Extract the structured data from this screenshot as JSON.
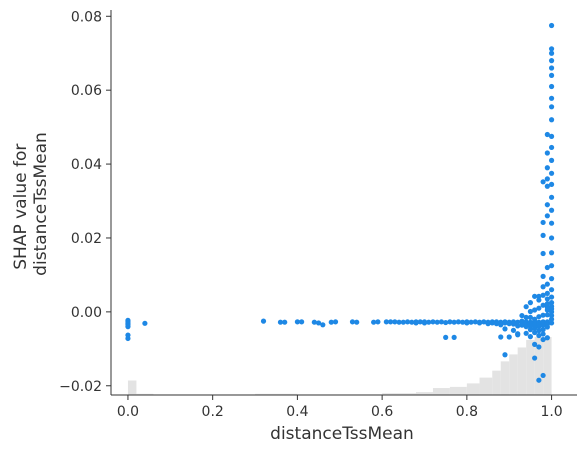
{
  "chart_data": {
    "type": "scatter",
    "title": "",
    "xlabel": "distanceTssMean",
    "ylabel_lines": [
      "SHAP value for",
      "distanceTssMean"
    ],
    "xlim": [
      -0.04,
      1.06
    ],
    "ylim": [
      -0.0225,
      0.0817
    ],
    "xticks": [
      0.0,
      0.2,
      0.4,
      0.6,
      0.8,
      1.0
    ],
    "xtick_labels": [
      "0.0",
      "0.2",
      "0.4",
      "0.6",
      "0.8",
      "1.0"
    ],
    "yticks": [
      -0.02,
      0.0,
      0.02,
      0.04,
      0.06,
      0.08
    ],
    "ytick_labels": [
      "−0.02",
      "0.00",
      "0.02",
      "0.04",
      "0.06",
      "0.08"
    ],
    "point_color": "#1e88e5",
    "histogram_color": "#e3e3e3",
    "histogram": {
      "description": "feature value distribution (relative height 0-1)",
      "bins": [
        {
          "x0": 0.0,
          "x1": 0.02,
          "h": 0.25
        },
        {
          "x0": 0.02,
          "x1": 0.06,
          "h": 0.02
        },
        {
          "x0": 0.06,
          "x1": 0.3,
          "h": 0.01
        },
        {
          "x0": 0.3,
          "x1": 0.4,
          "h": 0.02
        },
        {
          "x0": 0.4,
          "x1": 0.5,
          "h": 0.01
        },
        {
          "x0": 0.5,
          "x1": 0.6,
          "h": 0.01
        },
        {
          "x0": 0.6,
          "x1": 0.68,
          "h": 0.03
        },
        {
          "x0": 0.68,
          "x1": 0.72,
          "h": 0.05
        },
        {
          "x0": 0.72,
          "x1": 0.76,
          "h": 0.12
        },
        {
          "x0": 0.76,
          "x1": 0.8,
          "h": 0.14
        },
        {
          "x0": 0.8,
          "x1": 0.83,
          "h": 0.2
        },
        {
          "x0": 0.83,
          "x1": 0.86,
          "h": 0.3
        },
        {
          "x0": 0.86,
          "x1": 0.88,
          "h": 0.42
        },
        {
          "x0": 0.88,
          "x1": 0.9,
          "h": 0.58
        },
        {
          "x0": 0.9,
          "x1": 0.92,
          "h": 0.7
        },
        {
          "x0": 0.92,
          "x1": 0.94,
          "h": 0.82
        },
        {
          "x0": 0.94,
          "x1": 0.96,
          "h": 0.95
        },
        {
          "x0": 0.96,
          "x1": 0.98,
          "h": 1.0
        },
        {
          "x0": 0.98,
          "x1": 1.0,
          "h": 1.0
        }
      ]
    },
    "points": [
      [
        0.0,
        -0.0023
      ],
      [
        0.0,
        -0.0027
      ],
      [
        0.0,
        -0.0031
      ],
      [
        0.0,
        -0.0035
      ],
      [
        0.0,
        -0.004
      ],
      [
        0.0,
        -0.0063
      ],
      [
        0.0,
        -0.0072
      ],
      [
        0.04,
        -0.0031
      ],
      [
        0.32,
        -0.0025
      ],
      [
        0.36,
        -0.0028
      ],
      [
        0.37,
        -0.0028
      ],
      [
        0.4,
        -0.0027
      ],
      [
        0.41,
        -0.0027
      ],
      [
        0.44,
        -0.0028
      ],
      [
        0.45,
        -0.003
      ],
      [
        0.46,
        -0.0035
      ],
      [
        0.48,
        -0.0028
      ],
      [
        0.49,
        -0.0027
      ],
      [
        0.53,
        -0.0027
      ],
      [
        0.54,
        -0.0028
      ],
      [
        0.58,
        -0.0028
      ],
      [
        0.59,
        -0.0027
      ],
      [
        0.61,
        -0.0027
      ],
      [
        0.62,
        -0.0027
      ],
      [
        0.63,
        -0.0027
      ],
      [
        0.64,
        -0.0028
      ],
      [
        0.65,
        -0.0028
      ],
      [
        0.66,
        -0.0027
      ],
      [
        0.67,
        -0.0028
      ],
      [
        0.68,
        -0.0027
      ],
      [
        0.68,
        -0.003
      ],
      [
        0.69,
        -0.0027
      ],
      [
        0.7,
        -0.0027
      ],
      [
        0.7,
        -0.003
      ],
      [
        0.71,
        -0.0028
      ],
      [
        0.72,
        -0.0027
      ],
      [
        0.73,
        -0.0028
      ],
      [
        0.74,
        -0.0027
      ],
      [
        0.75,
        -0.0029
      ],
      [
        0.75,
        -0.0069
      ],
      [
        0.76,
        -0.0027
      ],
      [
        0.77,
        -0.0028
      ],
      [
        0.77,
        -0.0069
      ],
      [
        0.78,
        -0.0027
      ],
      [
        0.79,
        -0.0028
      ],
      [
        0.8,
        -0.0027
      ],
      [
        0.8,
        -0.003
      ],
      [
        0.81,
        -0.0028
      ],
      [
        0.82,
        -0.0027
      ],
      [
        0.83,
        -0.0028
      ],
      [
        0.83,
        -0.003
      ],
      [
        0.84,
        -0.0027
      ],
      [
        0.85,
        -0.0028
      ],
      [
        0.85,
        -0.0032
      ],
      [
        0.86,
        -0.0027
      ],
      [
        0.86,
        -0.003
      ],
      [
        0.87,
        -0.0027
      ],
      [
        0.87,
        -0.0032
      ],
      [
        0.88,
        -0.0028
      ],
      [
        0.88,
        -0.0035
      ],
      [
        0.88,
        -0.0068
      ],
      [
        0.89,
        -0.0027
      ],
      [
        0.89,
        -0.003
      ],
      [
        0.89,
        -0.0046
      ],
      [
        0.89,
        -0.0116
      ],
      [
        0.9,
        -0.0028
      ],
      [
        0.9,
        -0.0032
      ],
      [
        0.9,
        -0.0068
      ],
      [
        0.91,
        -0.0027
      ],
      [
        0.91,
        -0.0033
      ],
      [
        0.91,
        -0.005
      ],
      [
        0.92,
        -0.0028
      ],
      [
        0.92,
        -0.0038
      ],
      [
        0.92,
        -0.0059
      ],
      [
        0.92,
        -0.0062
      ],
      [
        0.93,
        -0.0027
      ],
      [
        0.93,
        -0.0036
      ],
      [
        0.93,
        -0.0025
      ],
      [
        0.93,
        -0.001
      ],
      [
        0.94,
        -0.0027
      ],
      [
        0.94,
        -0.0034
      ],
      [
        0.94,
        -0.004
      ],
      [
        0.94,
        -0.0058
      ],
      [
        0.94,
        -0.0015
      ],
      [
        0.94,
        0.0014
      ],
      [
        0.95,
        -0.0028
      ],
      [
        0.95,
        -0.0032
      ],
      [
        0.95,
        -0.0038
      ],
      [
        0.95,
        -0.0048
      ],
      [
        0.95,
        -0.0067
      ],
      [
        0.95,
        -0.0015
      ],
      [
        0.95,
        0.0001
      ],
      [
        0.95,
        0.0025
      ],
      [
        0.96,
        -0.0027
      ],
      [
        0.96,
        -0.003
      ],
      [
        0.96,
        -0.0035
      ],
      [
        0.96,
        -0.0044
      ],
      [
        0.96,
        -0.0056
      ],
      [
        0.96,
        -0.0088
      ],
      [
        0.96,
        -0.0125
      ],
      [
        0.96,
        -0.002
      ],
      [
        0.96,
        0.0005
      ],
      [
        0.96,
        0.0042
      ],
      [
        0.97,
        -0.0028
      ],
      [
        0.97,
        -0.0033
      ],
      [
        0.97,
        -0.004
      ],
      [
        0.97,
        -0.0051
      ],
      [
        0.97,
        -0.0064
      ],
      [
        0.97,
        -0.0095
      ],
      [
        0.97,
        -0.0185
      ],
      [
        0.97,
        -0.0013
      ],
      [
        0.97,
        0.001
      ],
      [
        0.97,
        0.0032
      ],
      [
        0.97,
        0.0042
      ],
      [
        0.98,
        -0.0027
      ],
      [
        0.98,
        -0.0031
      ],
      [
        0.98,
        -0.0036
      ],
      [
        0.98,
        -0.0048
      ],
      [
        0.98,
        -0.006
      ],
      [
        0.98,
        -0.0075
      ],
      [
        0.98,
        -0.0172
      ],
      [
        0.98,
        -0.0009
      ],
      [
        0.98,
        0.0018
      ],
      [
        0.98,
        0.0045
      ],
      [
        0.98,
        0.0068
      ],
      [
        0.98,
        0.0096
      ],
      [
        0.98,
        0.0158
      ],
      [
        0.98,
        0.0207
      ],
      [
        0.98,
        0.0242
      ],
      [
        0.98,
        0.0352
      ],
      [
        0.99,
        -0.0027
      ],
      [
        0.99,
        -0.0034
      ],
      [
        0.99,
        -0.0041
      ],
      [
        0.99,
        -0.007
      ],
      [
        0.99,
        -0.0008
      ],
      [
        0.99,
        0.0005
      ],
      [
        0.99,
        0.0012
      ],
      [
        0.99,
        0.0022
      ],
      [
        0.99,
        0.0035
      ],
      [
        0.99,
        0.005
      ],
      [
        0.99,
        0.0075
      ],
      [
        0.99,
        0.012
      ],
      [
        0.99,
        0.026
      ],
      [
        0.99,
        0.029
      ],
      [
        0.99,
        0.034
      ],
      [
        0.99,
        0.036
      ],
      [
        0.99,
        0.039
      ],
      [
        0.99,
        0.043
      ],
      [
        0.99,
        0.048
      ],
      [
        1.0,
        -0.003
      ],
      [
        1.0,
        -0.002
      ],
      [
        1.0,
        -0.001
      ],
      [
        1.0,
        0.0
      ],
      [
        1.0,
        0.0008
      ],
      [
        1.0,
        0.0015
      ],
      [
        1.0,
        0.0025
      ],
      [
        1.0,
        0.004
      ],
      [
        1.0,
        0.006
      ],
      [
        1.0,
        0.009
      ],
      [
        1.0,
        0.0125
      ],
      [
        1.0,
        0.016
      ],
      [
        1.0,
        0.02
      ],
      [
        1.0,
        0.024
      ],
      [
        1.0,
        0.0275
      ],
      [
        1.0,
        0.031
      ],
      [
        1.0,
        0.0345
      ],
      [
        1.0,
        0.0375
      ],
      [
        1.0,
        0.041
      ],
      [
        1.0,
        0.0445
      ],
      [
        1.0,
        0.0475
      ],
      [
        1.0,
        0.052
      ],
      [
        1.0,
        0.0555
      ],
      [
        1.0,
        0.0578
      ],
      [
        1.0,
        0.061
      ],
      [
        1.0,
        0.064
      ],
      [
        1.0,
        0.066
      ],
      [
        1.0,
        0.068
      ],
      [
        1.0,
        0.07
      ],
      [
        1.0,
        0.0712
      ],
      [
        1.0,
        0.0775
      ]
    ]
  }
}
